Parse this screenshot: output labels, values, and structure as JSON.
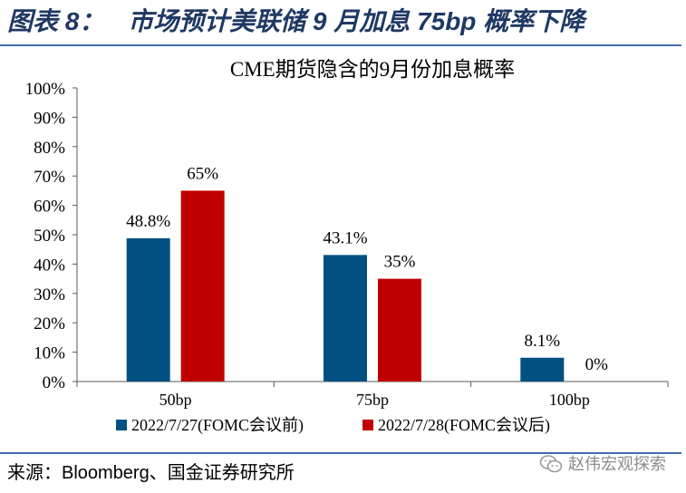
{
  "header": {
    "figure_label": "图表 8：",
    "title": "市场预计美联储 9 月加息 75bp 概率下降"
  },
  "chart_data": {
    "type": "bar",
    "title": "CME期货隐含的9月份加息概率",
    "categories": [
      "50bp",
      "75bp",
      "100bp"
    ],
    "series": [
      {
        "name": "2022/7/27(FOMC会议前)",
        "values": [
          48.8,
          43.1,
          8.1
        ],
        "labels": [
          "48.8%",
          "43.1%",
          "8.1%"
        ],
        "color": "#005182"
      },
      {
        "name": "2022/7/28(FOMC会议后)",
        "values": [
          65,
          35,
          0
        ],
        "labels": [
          "65%",
          "35%",
          "0%"
        ],
        "color": "#C00000"
      }
    ],
    "ylim": [
      0,
      100
    ],
    "ytick_values": [
      0,
      10,
      20,
      30,
      40,
      50,
      60,
      70,
      80,
      90,
      100
    ],
    "ytick_labels": [
      "0%",
      "10%",
      "20%",
      "30%",
      "40%",
      "50%",
      "60%",
      "70%",
      "80%",
      "90%",
      "100%"
    ],
    "grid": false,
    "legend": "bottom"
  },
  "footer": {
    "source": "来源：Bloomberg、国金证券研究所",
    "watermark": "赵伟宏观探索",
    "watermark_icon": "wechat-icon"
  },
  "colors": {
    "header_text": "#1F3864",
    "rule": "#3F6DB5",
    "axis": "#595959",
    "watermark": "#8C8C8C"
  }
}
